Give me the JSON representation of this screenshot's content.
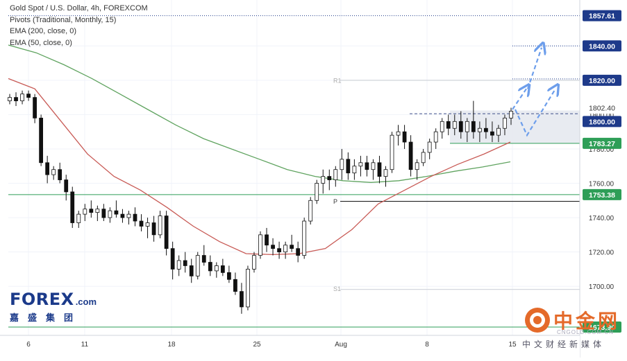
{
  "chart_data": {
    "type": "candlestick",
    "title": "Gold Spot / U.S. Dollar, 4h, FOREXCOM",
    "indicators": [
      "Pivots (Traditional, Monthly, 15)",
      "EMA (200, close, 0)",
      "EMA (50, close, 0)"
    ],
    "x_tick_labels": [
      "6",
      "11",
      "18",
      "25",
      "Aug",
      "8",
      "15"
    ],
    "y_tick_labels": [
      "1700.00",
      "1720.00",
      "1740.00",
      "1760.00",
      "1780.00",
      "1800.00",
      "1820.00",
      "1840.00"
    ],
    "ylim": [
      1690,
      1860
    ],
    "price_tags": [
      {
        "value": 1857.61,
        "label": "1857.61",
        "color": "#1e3a8a"
      },
      {
        "value": 1840.0,
        "label": "1840.00",
        "color": "#1e3a8a"
      },
      {
        "value": 1820.0,
        "label": "1820.00",
        "color": "#1e3a8a"
      },
      {
        "value": 1802.4,
        "label": "1802.40",
        "color": "#ffffff"
      },
      {
        "value": 1800.0,
        "label": "1800.00",
        "color": "#1e3a8a"
      },
      {
        "value": 1783.27,
        "label": "1783.27",
        "color": "#2e9e57"
      },
      {
        "value": 1753.38,
        "label": "1753.38",
        "color": "#2e9e57"
      },
      {
        "value": 1673.9,
        "label": "1673.90",
        "color": "#2e9e57"
      }
    ],
    "pivot_labels": [
      {
        "name": "R1",
        "value": 1820.0
      },
      {
        "name": "P",
        "value": 1749.5
      },
      {
        "name": "S1",
        "value": 1698.6
      }
    ],
    "ema200": [
      1840.5,
      1836,
      1829,
      1821,
      1812,
      1803,
      1794,
      1786,
      1780,
      1774,
      1768,
      1764,
      1761.5,
      1760.5,
      1761.5,
      1764,
      1767,
      1769.5,
      1772.5
    ],
    "ema50": [
      1821,
      1815,
      1796,
      1777,
      1764,
      1756,
      1746,
      1735,
      1726,
      1719,
      1718.5,
      1719,
      1722,
      1733,
      1748,
      1756,
      1764,
      1771,
      1777,
      1784
    ],
    "candles_ohlc": [
      [
        1808,
        1812,
        1806,
        1810
      ],
      [
        1810,
        1813,
        1805,
        1808
      ],
      [
        1808,
        1814,
        1806,
        1812
      ],
      [
        1812,
        1814,
        1808,
        1810
      ],
      [
        1810,
        1812,
        1795,
        1798
      ],
      [
        1798,
        1800,
        1770,
        1772
      ],
      [
        1772,
        1776,
        1760,
        1765
      ],
      [
        1765,
        1770,
        1762,
        1768
      ],
      [
        1768,
        1772,
        1760,
        1762
      ],
      [
        1762,
        1765,
        1750,
        1755
      ],
      [
        1755,
        1758,
        1734,
        1737
      ],
      [
        1737,
        1744,
        1734,
        1742
      ],
      [
        1742,
        1748,
        1738,
        1745
      ],
      [
        1745,
        1750,
        1740,
        1743
      ],
      [
        1743,
        1747,
        1738,
        1745
      ],
      [
        1745,
        1748,
        1738,
        1740
      ],
      [
        1740,
        1746,
        1737,
        1744
      ],
      [
        1744,
        1750,
        1740,
        1742
      ],
      [
        1742,
        1745,
        1737,
        1740
      ],
      [
        1740,
        1744,
        1736,
        1742
      ],
      [
        1742,
        1746,
        1735,
        1738
      ],
      [
        1738,
        1742,
        1732,
        1735
      ],
      [
        1735,
        1740,
        1728,
        1737
      ],
      [
        1737,
        1741,
        1726,
        1730
      ],
      [
        1730,
        1744,
        1728,
        1741
      ],
      [
        1741,
        1744,
        1718,
        1722
      ],
      [
        1722,
        1726,
        1704,
        1710
      ],
      [
        1710,
        1718,
        1706,
        1715
      ],
      [
        1715,
        1720,
        1708,
        1712
      ],
      [
        1712,
        1716,
        1702,
        1706
      ],
      [
        1706,
        1720,
        1704,
        1718
      ],
      [
        1718,
        1724,
        1712,
        1714
      ],
      [
        1714,
        1718,
        1706,
        1709
      ],
      [
        1709,
        1714,
        1705,
        1712
      ],
      [
        1712,
        1716,
        1706,
        1708
      ],
      [
        1708,
        1712,
        1702,
        1704
      ],
      [
        1704,
        1708,
        1695,
        1697
      ],
      [
        1697,
        1702,
        1684,
        1688
      ],
      [
        1688,
        1712,
        1686,
        1710
      ],
      [
        1710,
        1720,
        1708,
        1718
      ],
      [
        1718,
        1732,
        1716,
        1730
      ],
      [
        1730,
        1734,
        1720,
        1724
      ],
      [
        1724,
        1728,
        1718,
        1722
      ],
      [
        1722,
        1726,
        1716,
        1720
      ],
      [
        1720,
        1726,
        1716,
        1724
      ],
      [
        1724,
        1730,
        1720,
        1722
      ],
      [
        1722,
        1726,
        1714,
        1718
      ],
      [
        1718,
        1740,
        1716,
        1738
      ],
      [
        1738,
        1752,
        1736,
        1750
      ],
      [
        1750,
        1762,
        1748,
        1760
      ],
      [
        1760,
        1768,
        1754,
        1764
      ],
      [
        1764,
        1768,
        1756,
        1762
      ],
      [
        1762,
        1770,
        1758,
        1768
      ],
      [
        1768,
        1780,
        1762,
        1774
      ],
      [
        1774,
        1778,
        1762,
        1766
      ],
      [
        1766,
        1774,
        1762,
        1770
      ],
      [
        1770,
        1776,
        1764,
        1772
      ],
      [
        1772,
        1776,
        1764,
        1768
      ],
      [
        1768,
        1774,
        1762,
        1772
      ],
      [
        1772,
        1776,
        1760,
        1764
      ],
      [
        1764,
        1770,
        1758,
        1768
      ],
      [
        1768,
        1790,
        1766,
        1788
      ],
      [
        1788,
        1794,
        1782,
        1790
      ],
      [
        1790,
        1794,
        1780,
        1784
      ],
      [
        1784,
        1788,
        1764,
        1768
      ],
      [
        1768,
        1774,
        1762,
        1772
      ],
      [
        1772,
        1780,
        1770,
        1778
      ],
      [
        1778,
        1786,
        1774,
        1784
      ],
      [
        1784,
        1792,
        1780,
        1790
      ],
      [
        1790,
        1798,
        1786,
        1796
      ],
      [
        1796,
        1800,
        1788,
        1792
      ],
      [
        1792,
        1800,
        1788,
        1796
      ],
      [
        1796,
        1802,
        1786,
        1790
      ],
      [
        1790,
        1798,
        1784,
        1796
      ],
      [
        1796,
        1808,
        1786,
        1790
      ],
      [
        1790,
        1796,
        1784,
        1792
      ],
      [
        1792,
        1798,
        1786,
        1790
      ],
      [
        1790,
        1796,
        1784,
        1788
      ],
      [
        1788,
        1794,
        1784,
        1792
      ],
      [
        1792,
        1800,
        1788,
        1798
      ],
      [
        1798,
        1804,
        1794,
        1802
      ]
    ]
  },
  "scenario": {
    "resistance_box": {
      "top": 1802.4,
      "bottom": 1783.27,
      "fill": "#e6e9ef"
    },
    "projection_color": "#6d9eeb"
  },
  "watermarks": {
    "forex_main": "FOREX",
    "forex_suffix": ".com",
    "forex_cn": "嘉盛集团",
    "cngold_cn": "中金网",
    "cngold_site": "CNGOLD.COM.CN",
    "cngold_sub": "中文财经新媒体"
  }
}
